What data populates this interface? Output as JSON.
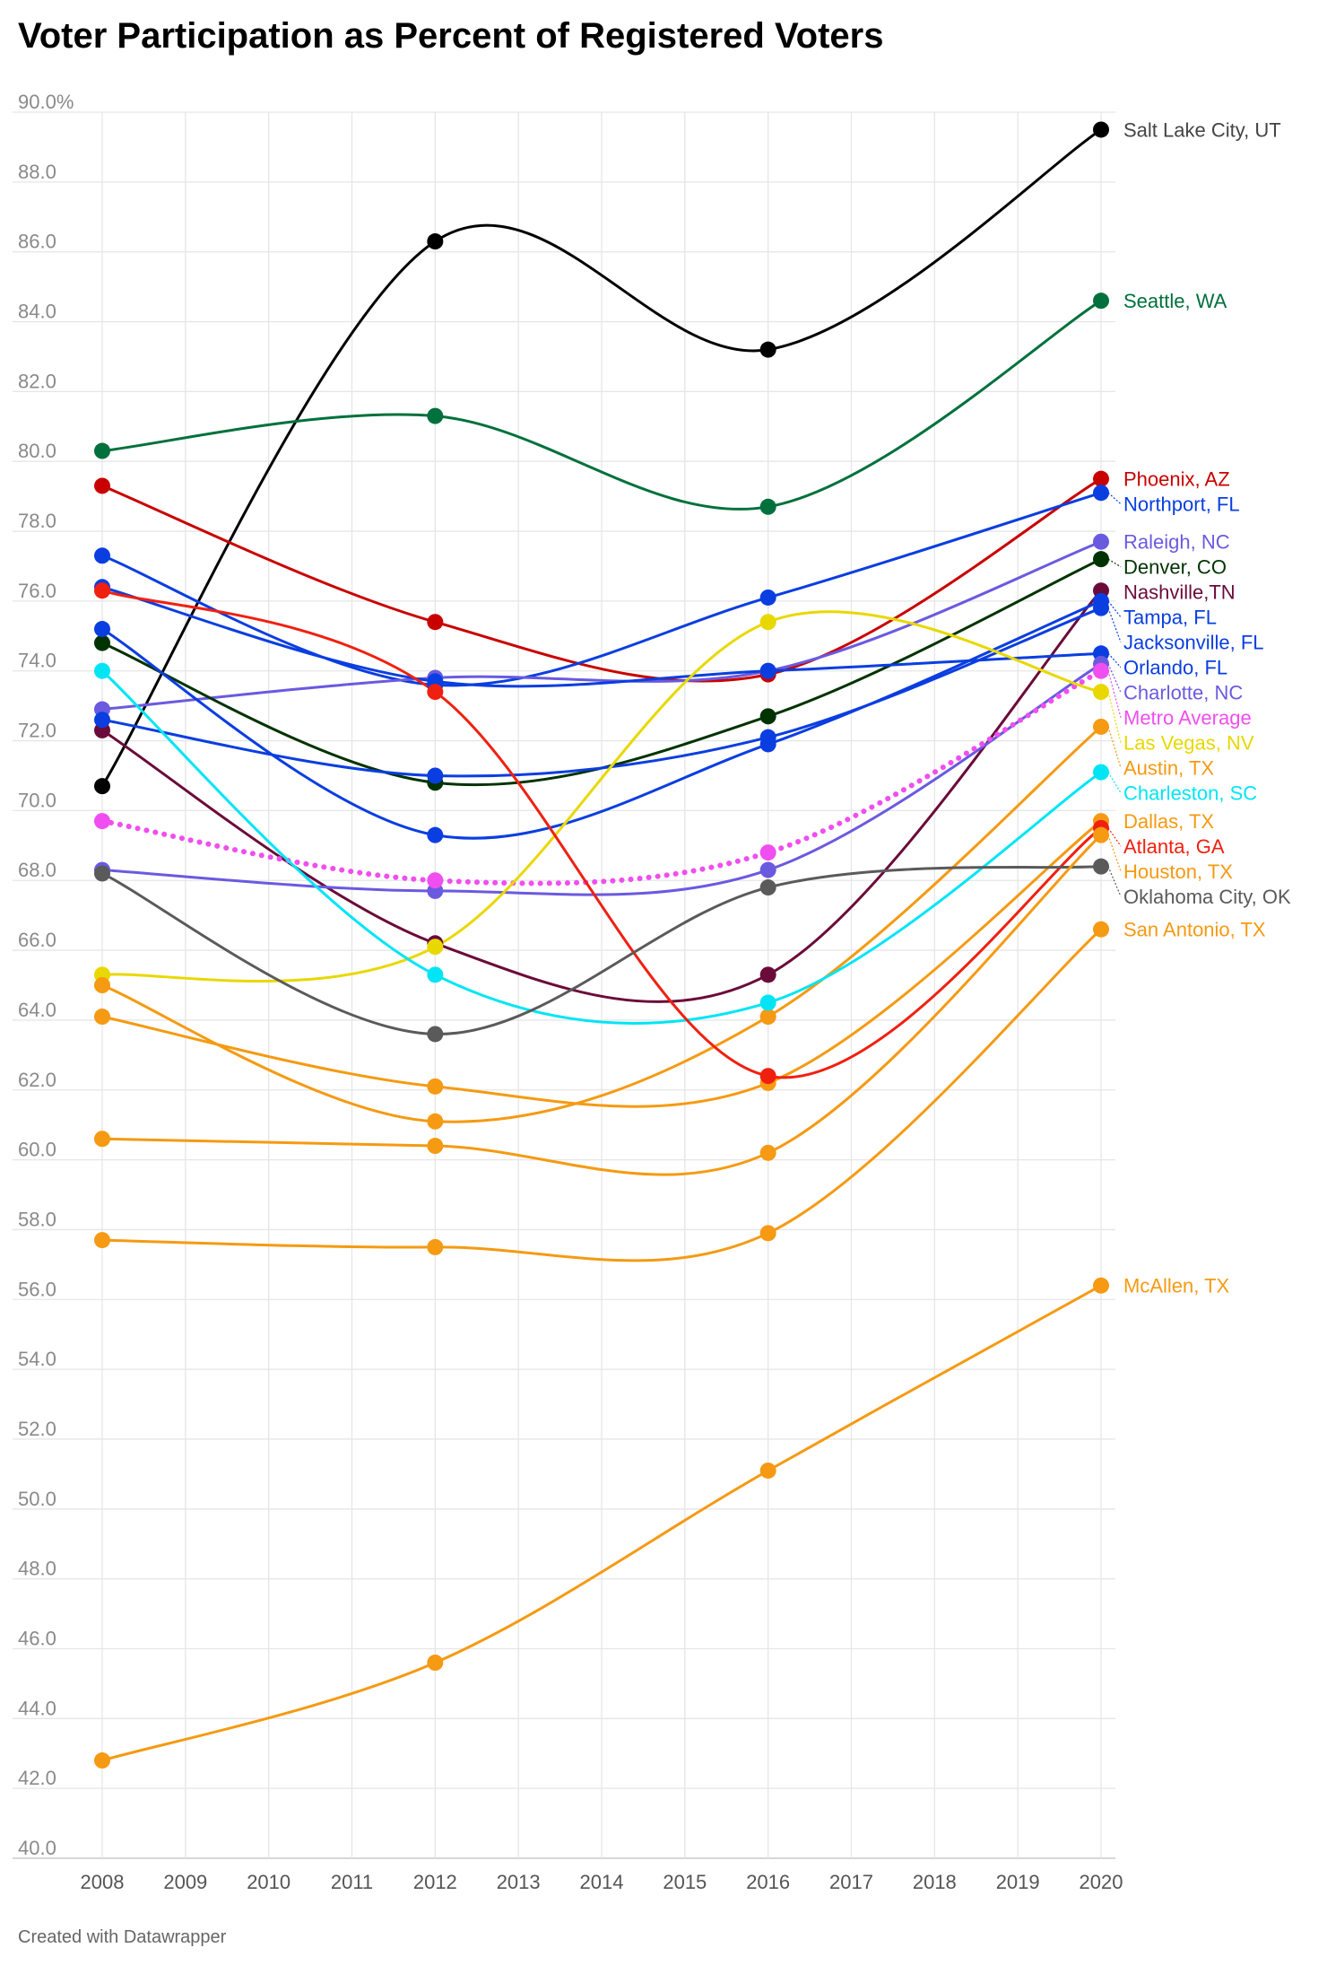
{
  "title": "Voter Participation as Percent of Registered Voters",
  "footer": "Created with Datawrapper",
  "chart_data": {
    "type": "line",
    "title": "Voter Participation as Percent of Registered Voters",
    "xlabel": "",
    "ylabel": "",
    "x": [
      2008,
      2012,
      2016,
      2020
    ],
    "xticks": [
      2008,
      2009,
      2010,
      2011,
      2012,
      2013,
      2014,
      2015,
      2016,
      2017,
      2018,
      2019,
      2020
    ],
    "ylim": [
      40,
      90
    ],
    "yticks": [
      40,
      42,
      44,
      46,
      48,
      50,
      52,
      54,
      56,
      58,
      60,
      62,
      64,
      66,
      68,
      70,
      72,
      74,
      76,
      78,
      80,
      82,
      84,
      86,
      88,
      90
    ],
    "ytick_labels": [
      "40.0",
      "42.0",
      "44.0",
      "46.0",
      "48.0",
      "50.0",
      "52.0",
      "54.0",
      "56.0",
      "58.0",
      "60.0",
      "62.0",
      "64.0",
      "66.0",
      "68.0",
      "70.0",
      "72.0",
      "74.0",
      "76.0",
      "78.0",
      "80.0",
      "82.0",
      "84.0",
      "86.0",
      "88.0",
      "90.0%"
    ],
    "grid": true,
    "legend": "direct labels at line ends",
    "series": [
      {
        "name": "Salt Lake City, UT",
        "color": "#000000",
        "values": [
          70.7,
          86.3,
          83.2,
          89.5
        ]
      },
      {
        "name": "Seattle, WA",
        "color": "#00703c",
        "values": [
          80.3,
          81.3,
          78.7,
          84.6
        ]
      },
      {
        "name": "Phoenix, AZ",
        "color": "#c90000",
        "values": [
          79.3,
          75.4,
          73.9,
          79.5
        ]
      },
      {
        "name": "Northport, FL",
        "color": "#0a3ee0",
        "values": [
          77.3,
          73.6,
          76.1,
          79.1
        ]
      },
      {
        "name": "Raleigh, NC",
        "color": "#6a5ae0",
        "values": [
          72.9,
          73.8,
          74.0,
          77.7
        ]
      },
      {
        "name": "Denver, CO",
        "color": "#003300",
        "values": [
          74.8,
          70.8,
          72.7,
          77.2
        ]
      },
      {
        "name": "Nashville,TN",
        "color": "#6b0b3a",
        "values": [
          72.3,
          66.2,
          65.3,
          76.3
        ]
      },
      {
        "name": "Tampa, FL",
        "color": "#0a3ee0",
        "values": [
          75.2,
          69.3,
          71.9,
          76.0
        ]
      },
      {
        "name": "Jacksonville, FL",
        "color": "#0a3ee0",
        "values": [
          72.6,
          71.0,
          72.1,
          75.8
        ]
      },
      {
        "name": "Orlando, FL",
        "color": "#0a3ee0",
        "values": [
          76.4,
          73.7,
          74.0,
          74.5
        ]
      },
      {
        "name": "Charlotte, NC",
        "color": "#6a5ae0",
        "values": [
          68.3,
          67.7,
          68.3,
          74.2
        ]
      },
      {
        "name": "Metro Average",
        "color": "#f04ef0",
        "dashed": true,
        "values": [
          69.7,
          68.0,
          68.8,
          74.0
        ]
      },
      {
        "name": "Las Vegas, NV",
        "color": "#e8d800",
        "values": [
          65.3,
          66.1,
          75.4,
          73.4
        ]
      },
      {
        "name": "Austin, TX",
        "color": "#f59a12",
        "values": [
          65.0,
          61.1,
          64.1,
          72.4
        ]
      },
      {
        "name": "Charleston, SC",
        "color": "#00e5f5",
        "values": [
          74.0,
          65.3,
          64.5,
          71.1
        ]
      },
      {
        "name": "Dallas, TX",
        "color": "#f59a12",
        "values": [
          64.1,
          62.1,
          62.2,
          69.7
        ]
      },
      {
        "name": "Atlanta, GA",
        "color": "#f02010",
        "values": [
          76.3,
          73.4,
          62.4,
          69.5
        ]
      },
      {
        "name": "Oklahoma City, OK",
        "color": "#5a5a5a",
        "values": [
          68.2,
          63.6,
          67.8,
          68.4
        ]
      },
      {
        "name": "Houston, TX",
        "color": "#f59a12",
        "values": [
          60.6,
          60.4,
          60.2,
          69.3
        ]
      },
      {
        "name": "San Antonio, TX",
        "color": "#f59a12",
        "values": [
          57.7,
          57.5,
          57.9,
          66.6
        ]
      },
      {
        "name": "McAllen, TX",
        "color": "#f59a12",
        "values": [
          42.8,
          45.6,
          51.1,
          56.4
        ]
      }
    ]
  }
}
